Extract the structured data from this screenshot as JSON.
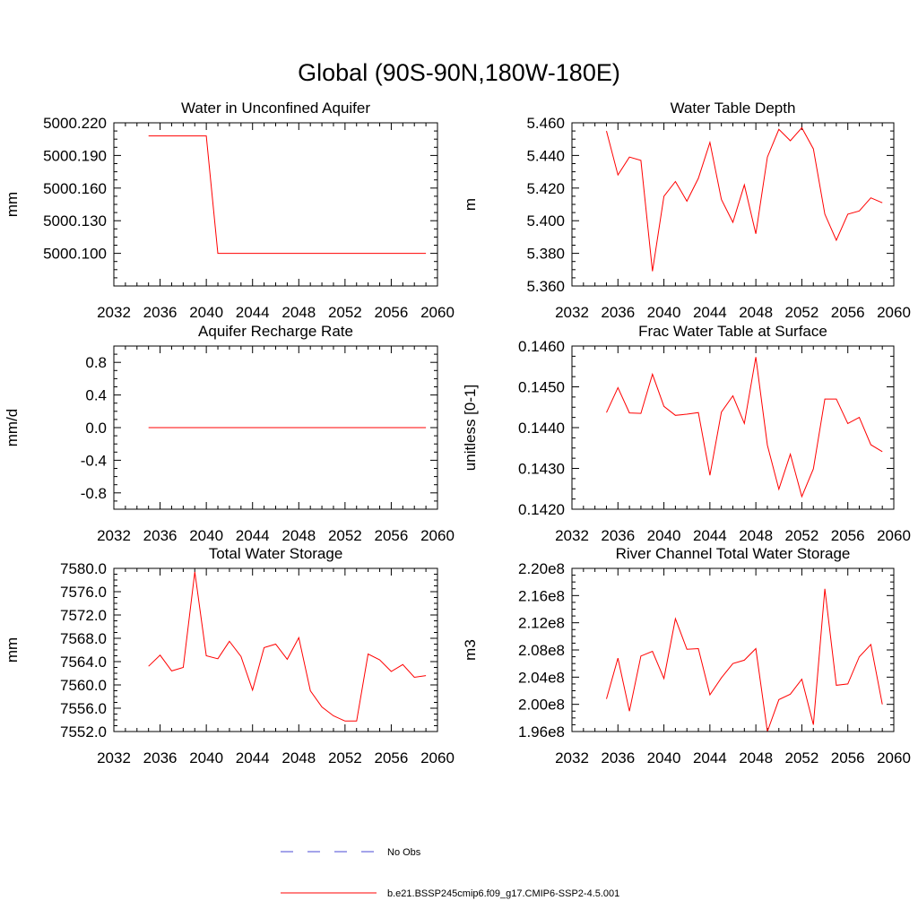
{
  "figure": {
    "title": "Global (90S-90N,180W-180E)",
    "legend": {
      "placement": "bottom-center",
      "items": [
        {
          "label": "No Obs",
          "color": "#4a4ad6",
          "style": "dashed"
        },
        {
          "label": "b.e21.BSSP245cmip6.f09_g17.CMIP6-SSP2-4.5.001",
          "color": "#ff0000",
          "style": "solid"
        }
      ]
    }
  },
  "chart_data": [
    {
      "type": "line",
      "title": "Water in Unconfined Aquifer",
      "xlabel": "",
      "ylabel": "mm",
      "xlim": [
        2032,
        2060
      ],
      "ylim": [
        5000.07,
        5000.22
      ],
      "xticks": [
        "2032",
        "2036",
        "2040",
        "2044",
        "2048",
        "2052",
        "2056",
        "2060"
      ],
      "yticks": [
        "5000.100",
        "5000.130",
        "5000.160",
        "5000.190",
        "5000.220"
      ],
      "ytick_values": [
        5000.1,
        5000.13,
        5000.16,
        5000.19,
        5000.22
      ],
      "x": [
        2035,
        2036,
        2037,
        2038,
        2039,
        2040,
        2041,
        2042,
        2043,
        2044,
        2045,
        2046,
        2047,
        2048,
        2049,
        2050,
        2051,
        2052,
        2053,
        2054,
        2055,
        2056,
        2057,
        2058,
        2059
      ],
      "series": [
        {
          "color": "#ff0000",
          "values": [
            5000.208,
            5000.208,
            5000.208,
            5000.208,
            5000.208,
            5000.208,
            5000.1,
            5000.1,
            5000.1,
            5000.1,
            5000.1,
            5000.1,
            5000.1,
            5000.1,
            5000.1,
            5000.1,
            5000.1,
            5000.1,
            5000.1,
            5000.1,
            5000.1,
            5000.1,
            5000.1,
            5000.1,
            5000.1
          ]
        }
      ]
    },
    {
      "type": "line",
      "title": "Water Table Depth",
      "xlabel": "",
      "ylabel": "m",
      "xlim": [
        2032,
        2060
      ],
      "ylim": [
        5.36,
        5.46
      ],
      "xticks": [
        "2032",
        "2036",
        "2040",
        "2044",
        "2048",
        "2052",
        "2056",
        "2060"
      ],
      "yticks": [
        "5.360",
        "5.380",
        "5.400",
        "5.420",
        "5.440",
        "5.460"
      ],
      "ytick_values": [
        5.36,
        5.38,
        5.4,
        5.42,
        5.44,
        5.46
      ],
      "x": [
        2035,
        2036,
        2037,
        2038,
        2039,
        2040,
        2041,
        2042,
        2043,
        2044,
        2045,
        2046,
        2047,
        2048,
        2049,
        2050,
        2051,
        2052,
        2053,
        2054,
        2055,
        2056,
        2057,
        2058,
        2059
      ],
      "series": [
        {
          "color": "#ff0000",
          "values": [
            5.455,
            5.428,
            5.439,
            5.437,
            5.369,
            5.415,
            5.424,
            5.412,
            5.426,
            5.448,
            5.413,
            5.399,
            5.422,
            5.392,
            5.439,
            5.456,
            5.449,
            5.457,
            5.444,
            5.404,
            5.388,
            5.404,
            5.406,
            5.414,
            5.411
          ]
        }
      ]
    },
    {
      "type": "line",
      "title": "Aquifer Recharge Rate",
      "xlabel": "",
      "ylabel": "mm/d",
      "xlim": [
        2032,
        2060
      ],
      "ylim": [
        -1.0,
        1.0
      ],
      "xticks": [
        "2032",
        "2036",
        "2040",
        "2044",
        "2048",
        "2052",
        "2056",
        "2060"
      ],
      "yticks": [
        "-0.8",
        "-0.4",
        "0.0",
        "0.4",
        "0.8"
      ],
      "ytick_values": [
        -0.8,
        -0.4,
        0.0,
        0.4,
        0.8
      ],
      "x": [
        2035,
        2036,
        2037,
        2038,
        2039,
        2040,
        2041,
        2042,
        2043,
        2044,
        2045,
        2046,
        2047,
        2048,
        2049,
        2050,
        2051,
        2052,
        2053,
        2054,
        2055,
        2056,
        2057,
        2058,
        2059
      ],
      "series": [
        {
          "color": "#ff0000",
          "values": [
            0,
            0,
            0,
            0,
            0,
            0,
            0,
            0,
            0,
            0,
            0,
            0,
            0,
            0,
            0,
            0,
            0,
            0,
            0,
            0,
            0,
            0,
            0,
            0,
            0
          ]
        }
      ]
    },
    {
      "type": "line",
      "title": "Frac Water Table at Surface",
      "xlabel": "",
      "ylabel": "unitless [0-1]",
      "xlim": [
        2032,
        2060
      ],
      "ylim": [
        0.142,
        0.146
      ],
      "xticks": [
        "2032",
        "2036",
        "2040",
        "2044",
        "2048",
        "2052",
        "2056",
        "2060"
      ],
      "yticks": [
        "0.1420",
        "0.1430",
        "0.1440",
        "0.1450",
        "0.1460"
      ],
      "ytick_values": [
        0.142,
        0.143,
        0.144,
        0.145,
        0.146
      ],
      "x": [
        2035,
        2036,
        2037,
        2038,
        2039,
        2040,
        2041,
        2042,
        2043,
        2044,
        2045,
        2046,
        2047,
        2048,
        2049,
        2050,
        2051,
        2052,
        2053,
        2054,
        2055,
        2056,
        2057,
        2058,
        2059
      ],
      "series": [
        {
          "color": "#ff0000",
          "values": [
            0.14437,
            0.14498,
            0.14436,
            0.14435,
            0.14531,
            0.14452,
            0.1443,
            0.14433,
            0.14437,
            0.14283,
            0.14438,
            0.14478,
            0.1441,
            0.14573,
            0.14357,
            0.14249,
            0.14335,
            0.14231,
            0.14299,
            0.1447,
            0.1447,
            0.1441,
            0.14425,
            0.14358,
            0.14341
          ]
        }
      ]
    },
    {
      "type": "line",
      "title": "Total Water Storage",
      "xlabel": "",
      "ylabel": "mm",
      "xlim": [
        2032,
        2060
      ],
      "ylim": [
        7552.0,
        7580.0
      ],
      "xticks": [
        "2032",
        "2036",
        "2040",
        "2044",
        "2048",
        "2052",
        "2056",
        "2060"
      ],
      "yticks": [
        "7552.0",
        "7556.0",
        "7560.0",
        "7564.0",
        "7568.0",
        "7572.0",
        "7576.0",
        "7580.0"
      ],
      "ytick_values": [
        7552,
        7556,
        7560,
        7564,
        7568,
        7572,
        7576,
        7580
      ],
      "x": [
        2035,
        2036,
        2037,
        2038,
        2039,
        2040,
        2041,
        2042,
        2043,
        2044,
        2045,
        2046,
        2047,
        2048,
        2049,
        2050,
        2051,
        2052,
        2053,
        2054,
        2055,
        2056,
        2057,
        2058,
        2059
      ],
      "series": [
        {
          "color": "#ff0000",
          "values": [
            7563.2,
            7565.1,
            7562.4,
            7563.0,
            7579.4,
            7565.0,
            7564.5,
            7567.5,
            7564.9,
            7559.1,
            7566.4,
            7567.0,
            7564.4,
            7568.1,
            7559.0,
            7556.2,
            7554.7,
            7553.8,
            7553.8,
            7565.3,
            7564.3,
            7562.3,
            7563.5,
            7561.3,
            7561.6
          ]
        }
      ]
    },
    {
      "type": "line",
      "title": "River Channel Total Water Storage",
      "xlabel": "",
      "ylabel": "m3",
      "xlim": [
        2032,
        2060
      ],
      "ylim": [
        196000000.0,
        220000000.0
      ],
      "xticks": [
        "2032",
        "2036",
        "2040",
        "2044",
        "2048",
        "2052",
        "2056",
        "2060"
      ],
      "yticks": [
        "1.96e8",
        "2.00e8",
        "2.04e8",
        "2.08e8",
        "2.12e8",
        "2.16e8",
        "2.20e8"
      ],
      "ytick_values": [
        196000000.0,
        200000000.0,
        204000000.0,
        208000000.0,
        212000000.0,
        216000000.0,
        220000000.0
      ],
      "x": [
        2035,
        2036,
        2037,
        2038,
        2039,
        2040,
        2041,
        2042,
        2043,
        2044,
        2045,
        2046,
        2047,
        2048,
        2049,
        2050,
        2051,
        2052,
        2053,
        2054,
        2055,
        2056,
        2057,
        2058,
        2059
      ],
      "series": [
        {
          "color": "#ff0000",
          "values": [
            200800000.0,
            206800000.0,
            199000000.0,
            207100000.0,
            207800000.0,
            203800000.0,
            212600000.0,
            208100000.0,
            208200000.0,
            201400000.0,
            203900000.0,
            206000000.0,
            206500000.0,
            208200000.0,
            196000000.0,
            200700000.0,
            201500000.0,
            203700000.0,
            197000000.0,
            217000000.0,
            202800000.0,
            203000000.0,
            207000000.0,
            208800000.0,
            200000000.0
          ]
        }
      ]
    }
  ]
}
